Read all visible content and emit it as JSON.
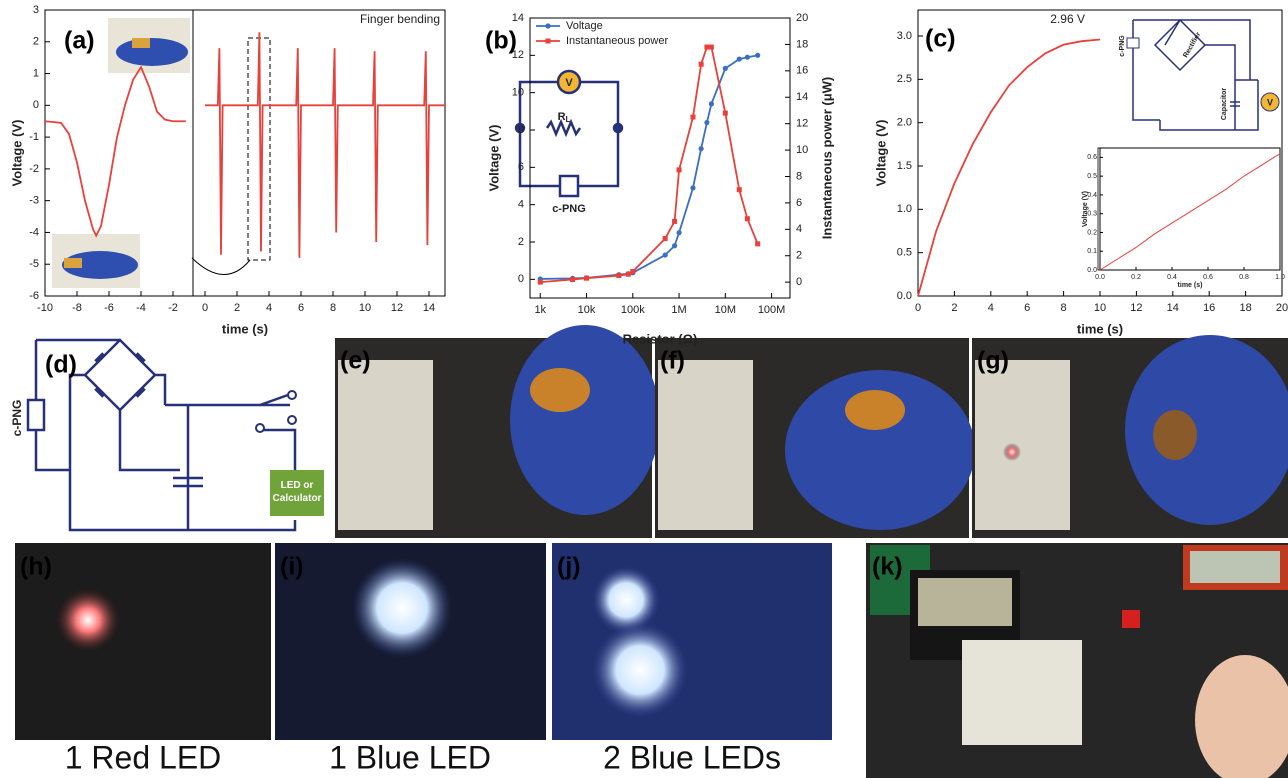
{
  "panels": {
    "a": "(a)",
    "b": "(b)",
    "c": "(c)",
    "d": "(d)",
    "e": "(e)",
    "f": "(f)",
    "g": "(g)",
    "h": "(h)",
    "i": "(i)",
    "j": "(j)",
    "k": "(k)"
  },
  "circuit_d": {
    "source": "c-PNG",
    "load": "LED or Calculator"
  },
  "captions": [
    "1 Red LED",
    "1 Blue LED",
    "2 Blue LEDs"
  ],
  "chart_data": [
    {
      "type": "line",
      "xlabel": "time (s)",
      "ylabel": "Voltage (V)",
      "annotation": "Finger bending",
      "xlim": [
        -10,
        15
      ],
      "ylim": [
        -6,
        3
      ],
      "xticks": [
        -10,
        -8,
        -6,
        -4,
        -2,
        0,
        2,
        4,
        6,
        8,
        10,
        12,
        14
      ],
      "yticks": [
        -6,
        -5,
        -4,
        -3,
        -2,
        -1,
        0,
        1,
        2,
        3
      ],
      "series": [
        {
          "color": "#e8403a",
          "x": [
            -10,
            -9,
            -8.5,
            -8,
            -7.5,
            -7,
            -6.8,
            -6.5,
            -6,
            -5.5,
            -5,
            -4.5,
            -4,
            -3.5,
            -3,
            -2.5,
            -2,
            -1.2
          ],
          "values": [
            -0.5,
            -0.55,
            -0.9,
            -1.8,
            -3,
            -3.9,
            -4.1,
            -3.8,
            -2.5,
            -1,
            0,
            0.8,
            1.2,
            0.6,
            -0.2,
            -0.45,
            -0.5,
            -0.5
          ]
        },
        {
          "color": "#e8403a",
          "x": [
            0,
            0.8,
            0.9,
            1.0,
            1.1,
            3.3,
            3.4,
            3.5,
            3.6,
            5.7,
            5.8,
            5.9,
            6.0,
            8.0,
            8.1,
            8.2,
            8.3,
            10.5,
            10.6,
            10.7,
            10.8,
            13.7,
            13.8,
            13.9,
            14.0,
            15
          ],
          "values": [
            0,
            0,
            1.8,
            -4.7,
            0,
            0,
            2.3,
            -4.6,
            0,
            0,
            1.8,
            -4.8,
            0,
            0,
            1.8,
            -4.0,
            0,
            0,
            1.7,
            -4.3,
            0,
            0,
            1.7,
            -4.4,
            0,
            0
          ]
        }
      ]
    },
    {
      "type": "line",
      "xscale": "log",
      "xlabel": "Resistor (Ω)",
      "ylabel": "Voltage (V)",
      "y2label": "Instantaneous power (μW)",
      "legend": "top-left",
      "inset_labels": [
        "V",
        "R",
        "L",
        "c-PNG"
      ],
      "xlim": [
        600,
        250000000
      ],
      "ylim": [
        -1,
        14
      ],
      "y2lim": [
        -1.2,
        20
      ],
      "xticks": [
        {
          "value": 1000,
          "label": "1k"
        },
        {
          "value": 10000,
          "label": "10k"
        },
        {
          "value": 100000,
          "label": "100k"
        },
        {
          "value": 1000000,
          "label": "1M"
        },
        {
          "value": 10000000,
          "label": "10M"
        },
        {
          "value": 100000000,
          "label": "100M"
        }
      ],
      "yticks": [
        0,
        2,
        4,
        6,
        8,
        10,
        12,
        14
      ],
      "y2ticks": [
        0,
        2,
        4,
        6,
        8,
        10,
        12,
        14,
        16,
        18,
        20
      ],
      "x": [
        1000,
        5000,
        10000,
        50000,
        80000,
        100000,
        500000,
        800000,
        1000000,
        2000000,
        3000000,
        4000000,
        5000000,
        10000000,
        20000000,
        30000000,
        50000000
      ],
      "series": [
        {
          "name": "Voltage",
          "color": "#3a6fc4",
          "marker": "circle",
          "values": [
            0.02,
            0.05,
            0.08,
            0.25,
            0.3,
            0.35,
            1.3,
            1.8,
            2.5,
            4.9,
            7,
            8.4,
            9.4,
            11.3,
            11.8,
            11.9,
            12
          ]
        },
        {
          "name": "Instantaneous power",
          "color": "#e8403a",
          "marker": "square",
          "axis": "y2",
          "values": [
            0,
            0.2,
            0.3,
            0.5,
            0.6,
            0.8,
            3.3,
            4.6,
            8.5,
            12.5,
            16.5,
            17.8,
            17.8,
            12.8,
            7,
            4.8,
            2.9
          ]
        }
      ]
    },
    {
      "type": "line",
      "xlabel": "time (s)",
      "ylabel": "Voltage (V)",
      "annotation": "2.96 V",
      "inset_labels": [
        "c-PNG",
        "Rectifier",
        "Capacitor",
        "V"
      ],
      "xlim": [
        0,
        20
      ],
      "ylim": [
        0,
        3.3
      ],
      "xticks": [
        0,
        2,
        4,
        6,
        8,
        10,
        12,
        14,
        16,
        18,
        20
      ],
      "yticks": [
        {
          "value": 0,
          "label": "0.0"
        },
        {
          "value": 0.5,
          "label": "0.5"
        },
        {
          "value": 1,
          "label": "1.0"
        },
        {
          "value": 1.5,
          "label": "1.5"
        },
        {
          "value": 2,
          "label": "2.0"
        },
        {
          "value": 2.5,
          "label": "2.5"
        },
        {
          "value": 3,
          "label": "3.0"
        }
      ],
      "series": [
        {
          "color": "#e8403a",
          "x": [
            0,
            1,
            2,
            3,
            4,
            5,
            6,
            7,
            8,
            9,
            10
          ],
          "values": [
            0,
            0.75,
            1.3,
            1.75,
            2.12,
            2.43,
            2.64,
            2.8,
            2.9,
            2.94,
            2.96
          ]
        }
      ]
    },
    {
      "type": "line",
      "xlabel": "time (s)",
      "ylabel": "Voltage (V)",
      "xlim": [
        0,
        1
      ],
      "ylim": [
        0,
        0.65
      ],
      "xticks": [
        {
          "value": 0,
          "label": "0.0"
        },
        {
          "value": 0.2,
          "label": "0.2"
        },
        {
          "value": 0.4,
          "label": "0.4"
        },
        {
          "value": 0.6,
          "label": "0.6"
        },
        {
          "value": 0.8,
          "label": "0.8"
        },
        {
          "value": 1,
          "label": "1.0"
        }
      ],
      "yticks": [
        {
          "value": 0,
          "label": "0.0"
        },
        {
          "value": 0.1,
          "label": "0.1"
        },
        {
          "value": 0.2,
          "label": "0.2"
        },
        {
          "value": 0.3,
          "label": "0.3"
        },
        {
          "value": 0.4,
          "label": "0.4"
        },
        {
          "value": 0.5,
          "label": "0.5"
        },
        {
          "value": 0.6,
          "label": "0.6"
        }
      ],
      "series": [
        {
          "color": "#e8403a",
          "x": [
            0,
            0.1,
            0.2,
            0.3,
            0.4,
            0.5,
            0.6,
            0.7,
            0.8,
            0.9,
            1.0
          ],
          "values": [
            0,
            0.06,
            0.12,
            0.19,
            0.25,
            0.31,
            0.37,
            0.43,
            0.5,
            0.56,
            0.62
          ]
        }
      ]
    }
  ]
}
